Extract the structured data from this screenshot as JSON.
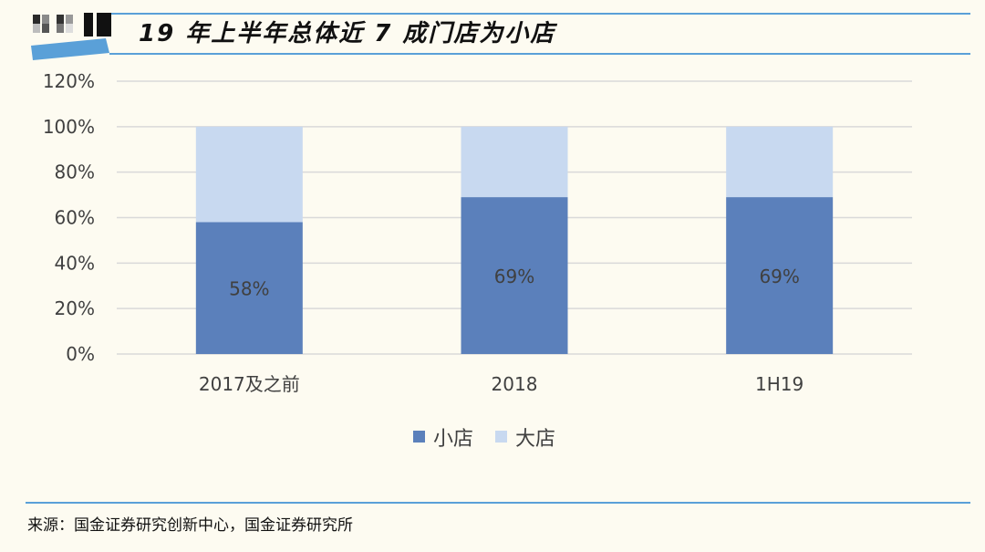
{
  "header": {
    "title": "19 年上半年总体近 7 成门店为小店"
  },
  "colors": {
    "accent_line": "#5aa0d8",
    "small_store": "#5b80bb",
    "large_store": "#c8d9f0",
    "grid": "#d9d9d9",
    "background": "#fdfbf1"
  },
  "chart_data": {
    "type": "bar",
    "stacked": true,
    "categories": [
      "2017及之前",
      "2018",
      "1H19"
    ],
    "series": [
      {
        "name": "小店",
        "values": [
          58,
          69,
          69
        ],
        "labels": [
          "58%",
          "69%",
          "69%"
        ]
      },
      {
        "name": "大店",
        "values": [
          42,
          31,
          31
        ]
      }
    ],
    "ylim": [
      0,
      120
    ],
    "yticks": [
      "0%",
      "20%",
      "40%",
      "60%",
      "80%",
      "100%",
      "120%"
    ],
    "grid": true,
    "legend_position": "bottom",
    "xlabel": "",
    "ylabel": ""
  },
  "footer": {
    "source": "来源：国金证券研究创新中心，国金证券研究所"
  }
}
